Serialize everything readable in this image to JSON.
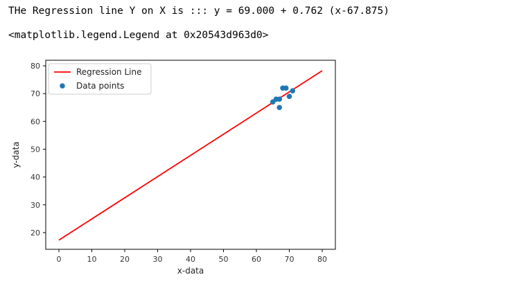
{
  "output": {
    "line1": "THe Regression line Y on X is ::: y = 69.000 + 0.762 (x-67.875)",
    "line2": "<matplotlib.legend.Legend at 0x20543d963d0>"
  },
  "colors": {
    "regression": "#ff0000",
    "points": "#1f77b4"
  },
  "chart_data": {
    "type": "scatter",
    "xlabel": "x-data",
    "ylabel": "y-data",
    "xlim": [
      -4,
      84
    ],
    "ylim": [
      14,
      82
    ],
    "xticks": [
      0,
      10,
      20,
      30,
      40,
      50,
      60,
      70,
      80
    ],
    "yticks": [
      20,
      30,
      40,
      50,
      60,
      70,
      80
    ],
    "legend_position": "upper-left",
    "legend": {
      "line_label": "Regression Line",
      "points_label": "Data points"
    },
    "regression_line": {
      "x": [
        0,
        80
      ],
      "y": [
        17.29,
        78.24
      ]
    },
    "points": {
      "x": [
        65,
        66,
        67,
        67,
        68,
        69,
        70,
        71
      ],
      "y": [
        67,
        68,
        68,
        65,
        72,
        72,
        69,
        71
      ]
    }
  }
}
